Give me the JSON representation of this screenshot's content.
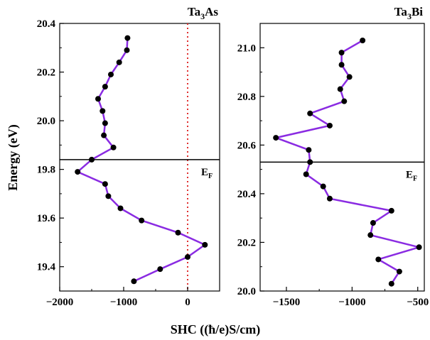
{
  "colors": {
    "line": "#8a2be2",
    "marker": "#000000",
    "fermi_line": "#000000",
    "zero_line": "#e03030"
  },
  "chart_data": [
    {
      "type": "line",
      "title": "Ta",
      "title_sub": "3",
      "title_end": "As",
      "xlim": [
        -2000,
        500
      ],
      "ylim": [
        19.3,
        20.4
      ],
      "xticks": [
        "−2000",
        "−1000",
        "0"
      ],
      "xtick_values": [
        -2000,
        -1000,
        0
      ],
      "yticks": [
        "19.4",
        "19.6",
        "19.8",
        "20.0",
        "20.2",
        "20.4"
      ],
      "ytick_values": [
        19.4,
        19.6,
        19.8,
        20.0,
        20.2,
        20.4
      ],
      "ylabel": "Energy (eV)",
      "fermi_energy": 19.84,
      "fermi_label": "E",
      "fermi_label_sub": "F",
      "zero_line": 0,
      "series": [
        {
          "x": [
            -940,
            -950,
            -1070,
            -1200,
            -1290,
            -1400,
            -1330,
            -1290,
            -1310,
            -1160,
            -1500,
            -1720,
            -1290,
            -1240,
            -1050,
            -720,
            -150,
            270,
            0,
            -430,
            -840
          ],
          "y": [
            20.34,
            20.29,
            20.24,
            20.19,
            20.14,
            20.09,
            20.04,
            19.99,
            19.94,
            19.89,
            19.84,
            19.79,
            19.74,
            19.69,
            19.64,
            19.59,
            19.54,
            19.49,
            19.44,
            19.39,
            19.34
          ]
        }
      ]
    },
    {
      "type": "line",
      "title": "Ta",
      "title_sub": "3",
      "title_end": "Bi",
      "xlim": [
        -1700,
        -450
      ],
      "ylim": [
        20.0,
        21.1
      ],
      "xticks": [
        "−1500",
        "−1000",
        "−500"
      ],
      "xtick_values": [
        -1500,
        -1000,
        -500
      ],
      "yticks": [
        "20.0",
        "20.2",
        "20.4",
        "20.6",
        "20.8",
        "21.0"
      ],
      "ytick_values": [
        20.0,
        20.2,
        20.4,
        20.6,
        20.8,
        21.0
      ],
      "fermi_energy": 20.53,
      "fermi_label": "E",
      "fermi_label_sub": "F",
      "series": [
        {
          "x": [
            -920,
            -1080,
            -1080,
            -1020,
            -1090,
            -1060,
            -1320,
            -1170,
            -1580,
            -1330,
            -1320,
            -1350,
            -1220,
            -1170,
            -700,
            -840,
            -860,
            -490,
            -800,
            -640,
            -700
          ],
          "y": [
            21.03,
            20.98,
            20.93,
            20.88,
            20.83,
            20.78,
            20.73,
            20.68,
            20.63,
            20.58,
            20.53,
            20.48,
            20.43,
            20.38,
            20.33,
            20.28,
            20.23,
            20.18,
            20.13,
            20.08,
            20.03
          ]
        }
      ]
    }
  ],
  "shared_xlabel": "SHC ((ħ/e)S/cm)"
}
